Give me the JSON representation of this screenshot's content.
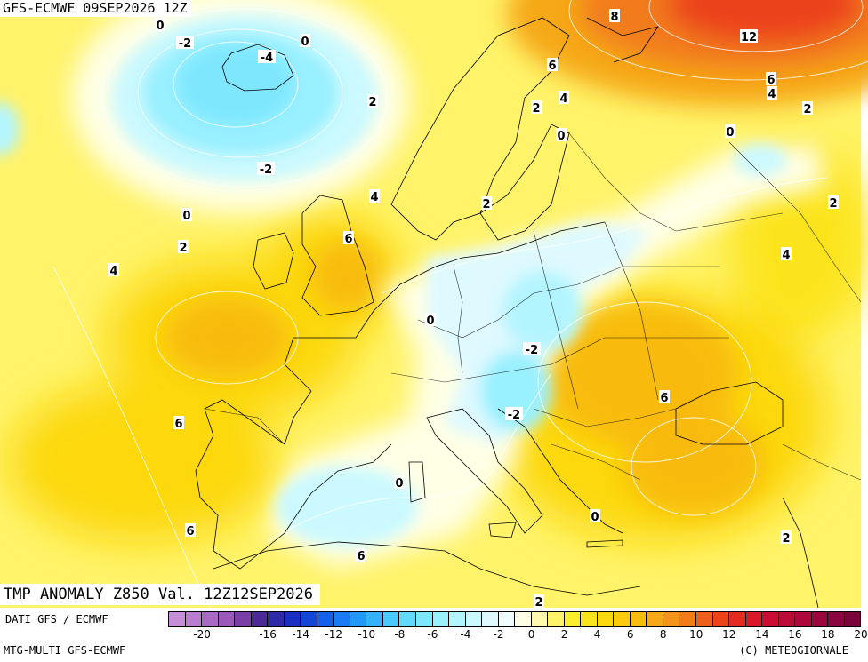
{
  "header": {
    "model_run": "GFS-ECMWF 09SEP2026 12Z"
  },
  "map_title": "TMP ANOMALY Z850 Val. 12Z12SEP2026",
  "footer": {
    "data_source": "DATI GFS / ECMWF",
    "model_name": "MTG-MULTI GFS-ECMWF",
    "copyright": "(C) METEOGIORNALE"
  },
  "color_scale": {
    "unit_steps": [
      -21,
      -20,
      -19,
      -18,
      -17,
      -16,
      -15,
      -14,
      -13,
      -12,
      -11,
      -10,
      -9,
      -8,
      -7,
      -6,
      -5,
      -4,
      -3,
      -2,
      -1,
      0,
      1,
      2,
      3,
      4,
      5,
      6,
      7,
      8,
      9,
      10,
      11,
      12,
      13,
      14,
      15,
      16,
      17,
      18,
      19,
      20
    ],
    "colors": [
      "#c58fd8",
      "#b97ccf",
      "#a96ac4",
      "#9a58b8",
      "#7a3fa6",
      "#4a2a95",
      "#2e2aa8",
      "#1b30c0",
      "#1346d6",
      "#1460e8",
      "#1a7bf2",
      "#2498f7",
      "#35b2fb",
      "#4bc8fd",
      "#62dafe",
      "#7ee7fe",
      "#99f0ff",
      "#b3f5ff",
      "#cbf9ff",
      "#def9ff",
      "#f0fdff",
      "#ffffe6",
      "#fff9b0",
      "#fff36a",
      "#fdee2c",
      "#fce41a",
      "#fcd80f",
      "#fbcb0c",
      "#f8bb10",
      "#f6a816",
      "#f4941a",
      "#f27b1b",
      "#ef5f1c",
      "#ec431c",
      "#e52a20",
      "#d9182a",
      "#cb0d33",
      "#bc0a3a",
      "#ac083e",
      "#9b063f",
      "#8a053d",
      "#78043a"
    ],
    "tick_labels": [
      "-20",
      "-16",
      "-14",
      "-12",
      "-10",
      "-8",
      "-6",
      "-4",
      "-2",
      "0",
      "2",
      "4",
      "6",
      "8",
      "10",
      "12",
      "14",
      "16",
      "18",
      "20"
    ]
  },
  "contour_labels": [
    {
      "text": "0"
    },
    {
      "text": "-2"
    },
    {
      "text": "-4"
    },
    {
      "text": "0"
    },
    {
      "text": "2"
    },
    {
      "text": "-2"
    },
    {
      "text": "0"
    },
    {
      "text": "2"
    },
    {
      "text": "4"
    },
    {
      "text": "4"
    },
    {
      "text": "6"
    },
    {
      "text": "8"
    },
    {
      "text": "6"
    },
    {
      "text": "4"
    },
    {
      "text": "2"
    },
    {
      "text": "0"
    },
    {
      "text": "12"
    },
    {
      "text": "6"
    },
    {
      "text": "4"
    },
    {
      "text": "2"
    },
    {
      "text": "0"
    },
    {
      "text": "2"
    },
    {
      "text": "2"
    },
    {
      "text": "4"
    },
    {
      "text": "0"
    },
    {
      "text": "-2"
    },
    {
      "text": "6"
    },
    {
      "text": "-2"
    },
    {
      "text": "6"
    },
    {
      "text": "0"
    },
    {
      "text": "6"
    },
    {
      "text": "0"
    },
    {
      "text": "6"
    },
    {
      "text": "2"
    },
    {
      "text": "2"
    }
  ]
}
